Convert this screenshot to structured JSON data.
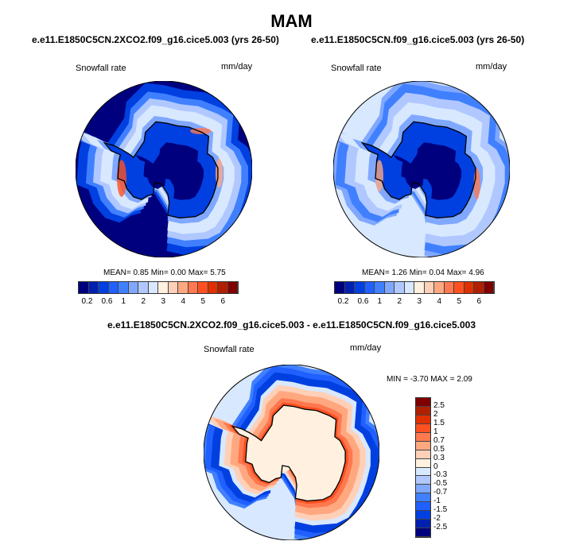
{
  "title": "MAM",
  "panels": [
    {
      "subtitle": "e.e11.E1850C5CN.2XCO2.f09_g16.cice5.003 (yrs 26-50)",
      "left_label": "Snowfall rate",
      "right_label": "mm/day",
      "stats": "MEAN=  0.85  Min=  0.00  Max=  5.75"
    },
    {
      "subtitle": "e.e11.E1850C5CN.f09_g16.cice5.003 (yrs 26-50)",
      "left_label": "Snowfall rate",
      "right_label": "mm/day",
      "stats": "MEAN=  1.26  Min=  0.04  Max=  4.96"
    }
  ],
  "diff_panel": {
    "subtitle": "e.e11.E1850C5CN.2XCO2.f09_g16.cice5.003 - e.e11.E1850C5CN.f09_g16.cice5.003",
    "left_label": "Snowfall rate",
    "right_label": "mm/day",
    "stats": "MIN =  -3.70 MAX =   2.09"
  },
  "colorbar": {
    "colors": [
      "#00007f",
      "#0020b0",
      "#0040e0",
      "#2060ff",
      "#4080ff",
      "#80a8ff",
      "#b0c8ff",
      "#d8e8ff",
      "#fff0e0",
      "#ffd0b8",
      "#ffa880",
      "#ff7850",
      "#ff5020",
      "#e03000",
      "#b02000",
      "#800000"
    ],
    "labels": [
      "0.2",
      "0.6",
      "1",
      "2",
      "3",
      "4",
      "5",
      "6"
    ]
  },
  "diff_colorbar": {
    "labels": [
      "2.5",
      "2",
      "1.5",
      "1",
      "0.7",
      "0.5",
      "0.3",
      "0",
      "-0.3",
      "-0.5",
      "-0.7",
      "-1",
      "-1.5",
      "-2",
      "-2.5"
    ]
  }
}
